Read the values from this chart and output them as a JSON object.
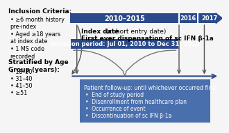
{
  "dark_blue": "#2B4A8B",
  "medium_blue": "#4A6FAD",
  "bg_color": "#f5f5f5",
  "label_2010_2015": "2010–2015",
  "label_2016": "2016",
  "label_2017": "2017",
  "inclusion_criteria_title": "Inclusion Criteria:",
  "inclusion_criteria_items": [
    "≥6 month history\npre-index",
    "Aged ≥18 years\nat index date",
    "1 MS code\nrecorded"
  ],
  "stratified_title": "Stratified by Age\nGroup (years):",
  "stratified_items": [
    "18–30",
    "31–40",
    "41–50",
    "≥51"
  ],
  "index_date_bold": "Index date",
  "index_date_rest": " (cohort entry date)",
  "index_date_line2": "First ever dispensation of sc IFN β-1a",
  "inclusion_box_text": "Inclusion period: Jul 01, 2010 to Dec 31, 2015",
  "followup_title": "Patient follow-up: until whichever occurred first:",
  "followup_items": [
    "End of study period",
    "Disenrollment from healthcare plan",
    "Occurrence of event",
    "Discontinuation of sc IFN β-1a"
  ]
}
